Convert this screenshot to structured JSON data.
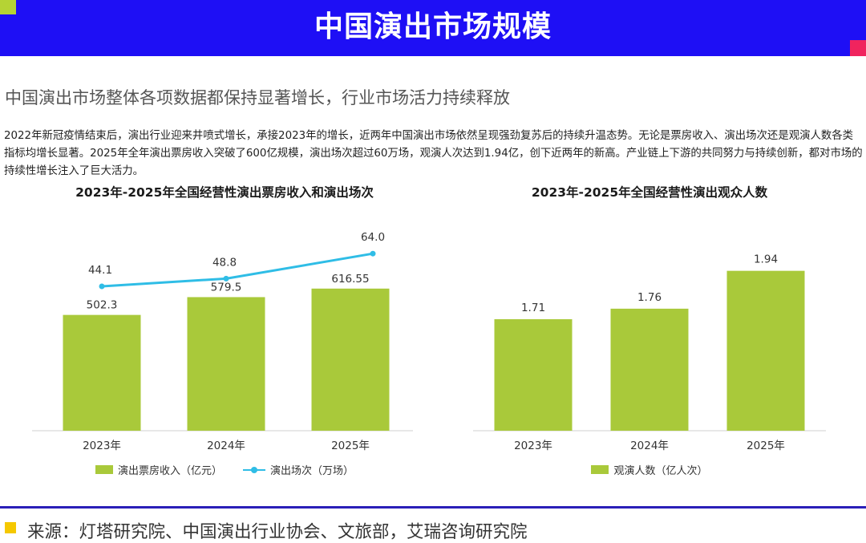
{
  "header": {
    "title": "中国演出市场规模",
    "accent_color": "#1e0ff5",
    "corner_colors": [
      "#b5d334",
      "#f0245e"
    ]
  },
  "subtitle": "中国演出市场整体各项数据都保持显著增长，行业市场活力持续释放",
  "intro": "2022年新冠疫情结束后，演出行业迎来井喷式增长，承接2023年的增长，近两年中国演出市场依然呈现强劲复苏后的持续升温态势。无论是票房收入、演出场次还是观演人数各类指标均增长显著。2025年全年演出票房收入突破了600亿规模，演出场次超过60万场，观演人次达到1.94亿，创下近两年的新高。产业链上下游的共同努力与持续创新，都对市场的持续性增长注入了巨大活力。",
  "chart_data": [
    {
      "type": "bar",
      "title": "2023年-2025年全国经营性演出票房收入和演出场次",
      "categories": [
        "2023年",
        "2024年",
        "2025年"
      ],
      "series": [
        {
          "name": "演出票房收入（亿元）",
          "type": "bar",
          "values": [
            502.3,
            579.5,
            616.55
          ],
          "labels": [
            "502.3",
            "579.5",
            "616.55"
          ],
          "color": "#a9c93a"
        },
        {
          "name": "演出场次（万场）",
          "type": "line",
          "values": [
            44.1,
            48.8,
            64.0
          ],
          "labels": [
            "44.1",
            "48.8",
            "64.0"
          ],
          "color": "#2fbde6"
        }
      ],
      "grid": false,
      "legend_position": "bottom"
    },
    {
      "type": "bar",
      "title": "2023年-2025年全国经营性演出观众人数",
      "categories": [
        "2023年",
        "2024年",
        "2025年"
      ],
      "series": [
        {
          "name": "观演人数（亿人次）",
          "type": "bar",
          "values": [
            1.71,
            1.76,
            1.94
          ],
          "labels": [
            "1.71",
            "1.76",
            "1.94"
          ],
          "color": "#a9c93a"
        }
      ],
      "grid": false,
      "legend_position": "bottom"
    }
  ],
  "footer": {
    "source": "来源：灯塔研究院、中国演出行业协会、文旅部，艾瑞咨询研究院",
    "rule_color": "#2a1fb8",
    "mark_color": "#f5c800"
  }
}
